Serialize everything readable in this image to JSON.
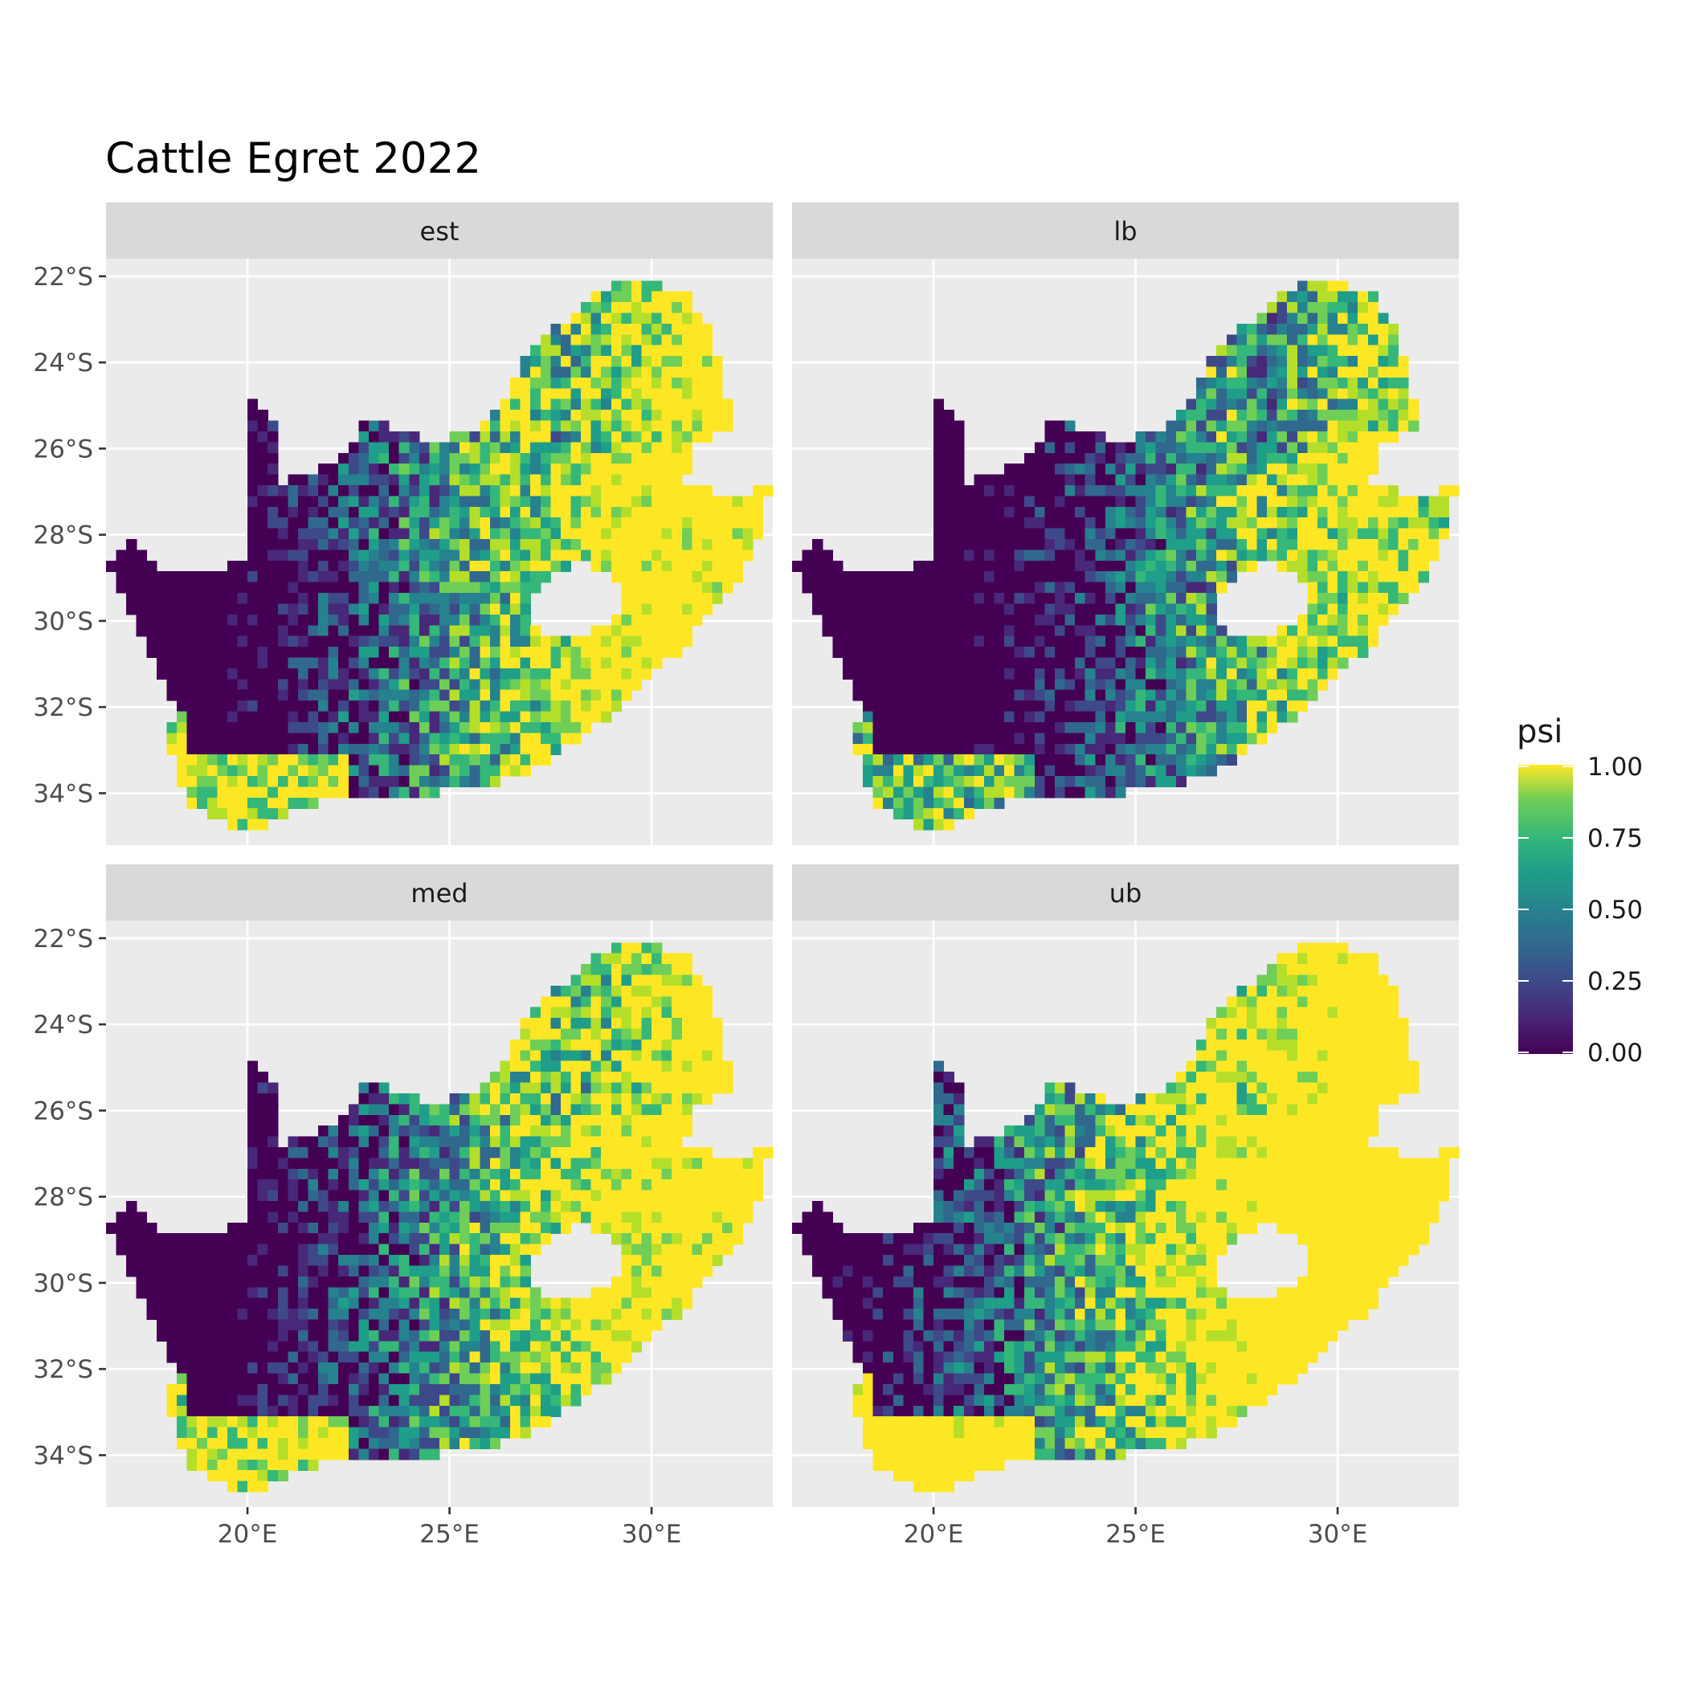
{
  "title": "Cattle Egret 2022",
  "panels": [
    {
      "id": "est",
      "label": "est"
    },
    {
      "id": "lb",
      "label": "lb"
    },
    {
      "id": "med",
      "label": "med"
    },
    {
      "id": "ub",
      "label": "ub"
    }
  ],
  "axes": {
    "x_ticks": [
      "20°E",
      "25°E",
      "30°E"
    ],
    "y_ticks": [
      "22°S",
      "24°S",
      "26°S",
      "28°S",
      "30°S",
      "32°S",
      "34°S"
    ]
  },
  "legend": {
    "title": "psi",
    "labels": [
      "1.00",
      "0.75",
      "0.50",
      "0.25",
      "0.00"
    ],
    "colors": [
      "#fde725",
      "#7ad151",
      "#22a884",
      "#2a788e",
      "#414487",
      "#440154"
    ]
  },
  "chart_data": {
    "type": "heatmap",
    "title": "Cattle Egret 2022",
    "facets": [
      "est",
      "lb",
      "med",
      "ub"
    ],
    "fill_variable": "psi",
    "fill_range": [
      0,
      1
    ],
    "colormap": "viridis",
    "xlim_deg_east": [
      16.5,
      33.0
    ],
    "ylim_deg_south": [
      -35.0,
      -22.0
    ],
    "x_ticks": [
      20,
      25,
      30
    ],
    "y_ticks": [
      -22,
      -24,
      -26,
      -28,
      -30,
      -32,
      -34
    ],
    "grid": true,
    "legend_position": "right"
  }
}
